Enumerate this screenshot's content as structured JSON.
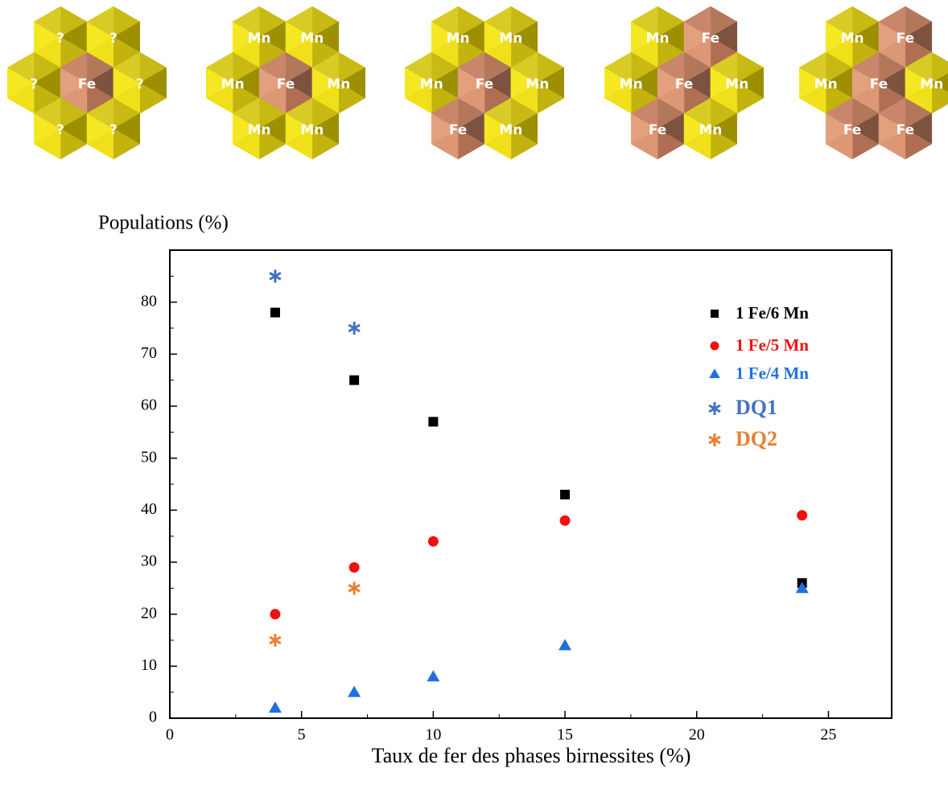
{
  "structures": [
    [
      "?",
      "?",
      "?",
      "Fe",
      "?",
      "?",
      "?"
    ],
    [
      "Mn",
      "Mn",
      "Mn",
      "Fe",
      "Mn",
      "Mn",
      "Mn"
    ],
    [
      "Mn",
      "Mn",
      "Mn",
      "Fe",
      "Mn",
      "Fe",
      "Mn"
    ],
    [
      "Mn",
      "Fe",
      "Mn",
      "Fe",
      "Mn",
      "Fe",
      "Mn"
    ],
    [
      "Mn",
      "Fe",
      "Mn",
      "Fe",
      "Mn",
      "Fe",
      "Fe"
    ]
  ],
  "chart_data": {
    "type": "scatter",
    "ylabel": "Populations (%)",
    "xlabel": "Taux de fer des phases birnessites (%)",
    "xlim": [
      0,
      27.4
    ],
    "ylim": [
      0,
      90
    ],
    "xticks": [
      0,
      5,
      10,
      15,
      20,
      25
    ],
    "yticks": [
      0,
      10,
      20,
      30,
      40,
      50,
      60,
      70,
      80
    ],
    "minor_xticks": [
      2.5,
      7.5,
      12.5,
      17.5,
      22.5
    ],
    "minor_yticks": [
      5,
      15,
      25,
      35,
      45,
      55,
      65,
      75,
      85
    ],
    "legend": "upper right",
    "series": [
      {
        "name": "1 Fe/6 Mn",
        "color": "#000000",
        "marker": "square",
        "x": [
          4,
          7,
          10,
          15,
          24
        ],
        "values": [
          78,
          65,
          57,
          43,
          26
        ]
      },
      {
        "name": "1 Fe/5 Mn",
        "color": "#f01010",
        "marker": "circle",
        "x": [
          4,
          7,
          10,
          15,
          24
        ],
        "values": [
          20,
          29,
          34,
          38,
          39
        ]
      },
      {
        "name": "1 Fe/4 Mn",
        "color": "#1f6fe0",
        "marker": "triangle",
        "x": [
          4,
          7,
          10,
          15,
          24
        ],
        "values": [
          2,
          5,
          8,
          14,
          25
        ]
      },
      {
        "name": "DQ1",
        "color": "#4472c4",
        "marker": "asterisk",
        "x": [
          4,
          7
        ],
        "values": [
          85,
          75
        ]
      },
      {
        "name": "DQ2",
        "color": "#ed7d31",
        "marker": "asterisk",
        "x": [
          4,
          7
        ],
        "values": [
          15,
          25
        ]
      }
    ]
  }
}
